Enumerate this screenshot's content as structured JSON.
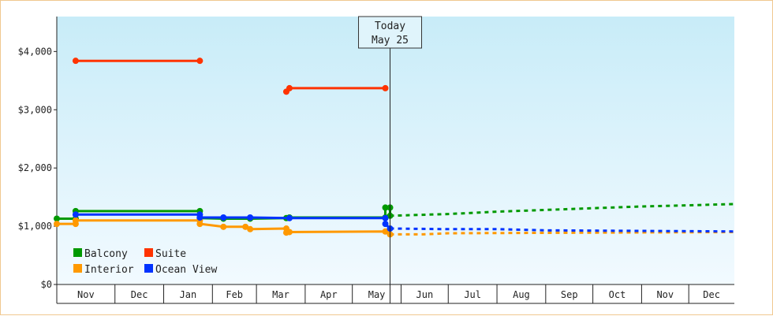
{
  "chart_data": {
    "type": "line",
    "title": "",
    "xlabel": "",
    "ylabel": "",
    "ylim": [
      0,
      4600
    ],
    "yticks": [
      {
        "value": 0,
        "label": "$0"
      },
      {
        "value": 1000,
        "label": "$1,000"
      },
      {
        "value": 2000,
        "label": "$2,000"
      },
      {
        "value": 3000,
        "label": "$3,000"
      },
      {
        "value": 4000,
        "label": "$4,000"
      }
    ],
    "xlim": [
      "2025-10-25",
      "2026-12-30"
    ],
    "months": [
      {
        "label": "Nov",
        "start": "2025-11-01"
      },
      {
        "label": "Dec",
        "start": "2025-12-01"
      },
      {
        "label": "Jan",
        "start": "2026-01-01"
      },
      {
        "label": "Feb",
        "start": "2026-02-01"
      },
      {
        "label": "Mar",
        "start": "2026-03-01"
      },
      {
        "label": "Apr",
        "start": "2026-04-01"
      },
      {
        "label": "May",
        "start": "2026-05-01"
      },
      {
        "label": "Jun",
        "start": "2026-06-01"
      },
      {
        "label": "Jul",
        "start": "2026-07-01"
      },
      {
        "label": "Aug",
        "start": "2026-08-01"
      },
      {
        "label": "Sep",
        "start": "2026-09-01"
      },
      {
        "label": "Oct",
        "start": "2026-10-01"
      },
      {
        "label": "Nov",
        "start": "2026-11-01"
      },
      {
        "label": "Dec",
        "start": "2026-12-01"
      }
    ],
    "today": {
      "date": "2026-05-25",
      "label_line1": "Today",
      "label_line2": "May 25"
    },
    "legend_position": "bottom-left",
    "series": [
      {
        "name": "Balcony",
        "color": "#009900",
        "points": [
          {
            "x": "2025-10-25",
            "y": 1130
          },
          {
            "x": "2025-11-06",
            "y": 1130
          },
          {
            "x": "2025-11-06",
            "y": 1260
          },
          {
            "x": "2026-01-24",
            "y": 1260
          },
          {
            "x": "2026-01-24",
            "y": 1140
          },
          {
            "x": "2026-02-08",
            "y": 1130
          },
          {
            "x": "2026-02-25",
            "y": 1130
          },
          {
            "x": "2026-03-20",
            "y": 1140
          },
          {
            "x": "2026-03-22",
            "y": 1150
          },
          {
            "x": "2026-05-22",
            "y": 1150
          },
          {
            "x": "2026-05-22",
            "y": 1320
          },
          {
            "x": "2026-05-25",
            "y": 1320
          },
          {
            "x": "2026-05-25",
            "y": 1180
          }
        ],
        "forecast": [
          {
            "x": "2026-05-25",
            "y": 1180
          },
          {
            "x": "2026-07-01",
            "y": 1210
          },
          {
            "x": "2026-08-01",
            "y": 1250
          },
          {
            "x": "2026-09-01",
            "y": 1280
          },
          {
            "x": "2026-10-01",
            "y": 1310
          },
          {
            "x": "2026-11-01",
            "y": 1340
          },
          {
            "x": "2026-12-30",
            "y": 1380
          }
        ]
      },
      {
        "name": "Suite",
        "color": "#ff3300",
        "points": [
          {
            "x": "2025-11-06",
            "y": 3840
          },
          {
            "x": "2026-01-24",
            "y": 3840
          }
        ],
        "points2": [
          {
            "x": "2026-03-20",
            "y": 3310
          },
          {
            "x": "2026-03-22",
            "y": 3370
          },
          {
            "x": "2026-05-22",
            "y": 3370
          }
        ]
      },
      {
        "name": "Interior",
        "color": "#ff9900",
        "points": [
          {
            "x": "2025-10-25",
            "y": 1040
          },
          {
            "x": "2025-11-06",
            "y": 1040
          },
          {
            "x": "2025-11-06",
            "y": 1100
          },
          {
            "x": "2026-01-24",
            "y": 1100
          },
          {
            "x": "2026-01-24",
            "y": 1040
          },
          {
            "x": "2026-02-08",
            "y": 990
          },
          {
            "x": "2026-02-22",
            "y": 990
          },
          {
            "x": "2026-02-25",
            "y": 950
          },
          {
            "x": "2026-03-20",
            "y": 960
          },
          {
            "x": "2026-03-20",
            "y": 890
          },
          {
            "x": "2026-03-22",
            "y": 900
          },
          {
            "x": "2026-05-22",
            "y": 910
          },
          {
            "x": "2026-05-25",
            "y": 860
          }
        ],
        "forecast": [
          {
            "x": "2026-05-25",
            "y": 860
          },
          {
            "x": "2026-06-15",
            "y": 860
          },
          {
            "x": "2026-07-01",
            "y": 880
          },
          {
            "x": "2026-10-01",
            "y": 890
          },
          {
            "x": "2026-12-30",
            "y": 900
          }
        ]
      },
      {
        "name": "Ocean View",
        "color": "#0033ff",
        "points": [
          {
            "x": "2025-11-06",
            "y": 1200
          },
          {
            "x": "2026-01-24",
            "y": 1200
          },
          {
            "x": "2026-01-24",
            "y": 1150
          },
          {
            "x": "2026-02-08",
            "y": 1150
          },
          {
            "x": "2026-02-25",
            "y": 1150
          },
          {
            "x": "2026-03-22",
            "y": 1140
          },
          {
            "x": "2026-05-22",
            "y": 1140
          },
          {
            "x": "2026-05-22",
            "y": 1040
          },
          {
            "x": "2026-05-25",
            "y": 960
          }
        ],
        "forecast": [
          {
            "x": "2026-05-25",
            "y": 960
          },
          {
            "x": "2026-07-01",
            "y": 950
          },
          {
            "x": "2026-08-01",
            "y": 950
          },
          {
            "x": "2026-09-01",
            "y": 930
          },
          {
            "x": "2026-12-30",
            "y": 910
          }
        ]
      }
    ],
    "legend_rows": [
      [
        {
          "name": "Balcony",
          "color": "#009900"
        },
        {
          "name": "Suite",
          "color": "#ff3300"
        }
      ],
      [
        {
          "name": "Interior",
          "color": "#ff9900"
        },
        {
          "name": "Ocean View",
          "color": "#0033ff"
        }
      ]
    ]
  }
}
